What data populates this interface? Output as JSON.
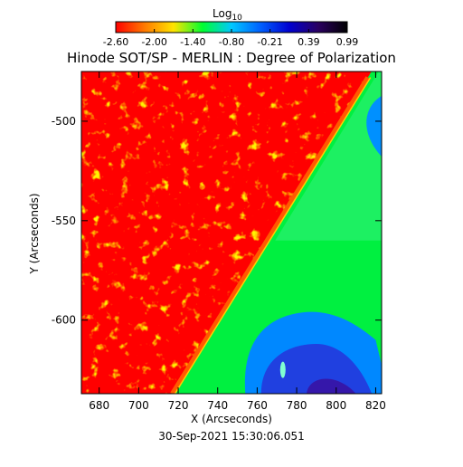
{
  "chart_data": {
    "type": "heatmap",
    "title": "Hinode SOT/SP - MERLIN : Degree of Polarization",
    "timestamp": "30-Sep-2021 15:30:06.051",
    "xlabel": "X (Arcseconds)",
    "ylabel": "Y (Arcseconds)",
    "xlim": [
      671,
      823
    ],
    "ylim": [
      -637,
      -475
    ],
    "x_ticks": [
      680,
      700,
      720,
      740,
      760,
      780,
      800,
      820
    ],
    "y_ticks": [
      -600,
      -550,
      -500
    ],
    "colorbar": {
      "label_base": "Log",
      "label_sub": "10",
      "range": [
        -2.6,
        0.99
      ],
      "tick_labels": [
        "-2.60",
        "-2.00",
        "-1.40",
        "-0.80",
        "-0.21",
        "0.39",
        "0.99"
      ],
      "colors": [
        "#ff0000",
        "#ff7a00",
        "#ffe400",
        "#00ff30",
        "#00c8ff",
        "#0060ff",
        "#0000d0",
        "#2a0060",
        "#000000"
      ]
    },
    "limb_line": {
      "x1": 717,
      "y1": -637,
      "x2": 816,
      "y2": -478
    },
    "regions": {
      "disk_value": -2.6,
      "limb_band_value": -2.0,
      "offlimb_value": -0.9,
      "strong_offlimb_value": 0.2
    }
  }
}
